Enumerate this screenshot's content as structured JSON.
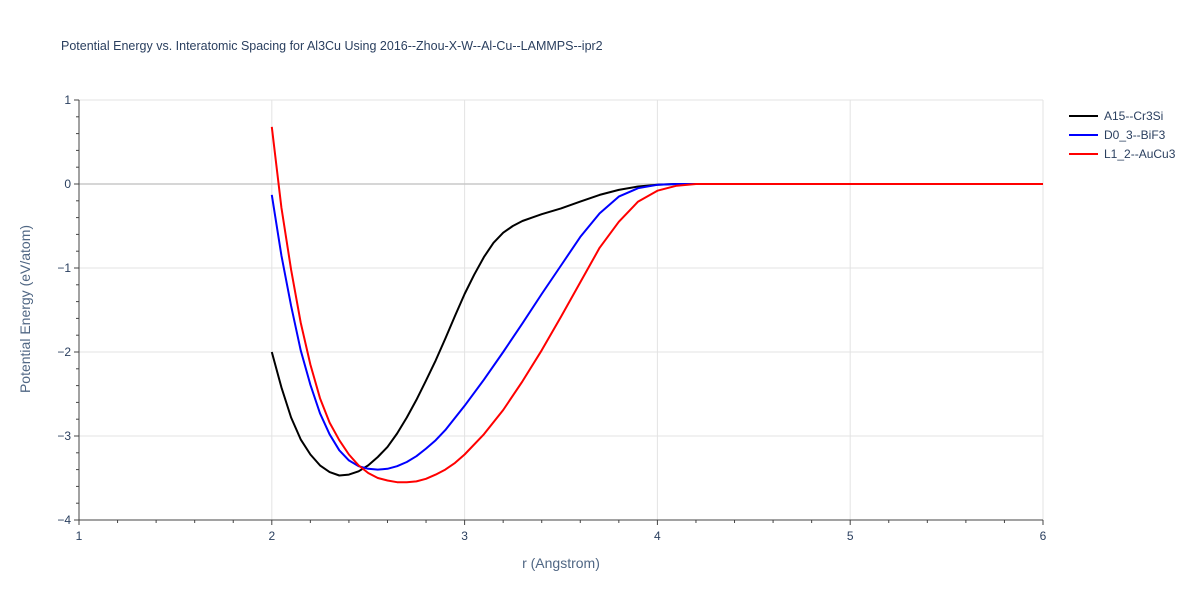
{
  "chart_data": {
    "type": "line",
    "title": "Potential Energy vs. Interatomic Spacing for Al3Cu Using 2016--Zhou-X-W--Al-Cu--LAMMPS--ipr2",
    "xlabel": "r (Angstrom)",
    "ylabel": "Potential Energy (eV/atom)",
    "xlim": [
      1,
      6
    ],
    "ylim": [
      -4,
      1
    ],
    "xticks": [
      1,
      2,
      3,
      4,
      5,
      6
    ],
    "xtick_labels": [
      "1",
      "2",
      "3",
      "4",
      "5",
      "6"
    ],
    "yticks": [
      1,
      0,
      -1,
      -2,
      -3,
      -4
    ],
    "ytick_labels": [
      "1",
      "0",
      "−1",
      "−2",
      "−3",
      "−4"
    ],
    "grid": true,
    "legend_position": "top-right",
    "series": [
      {
        "name": "A15--Cr3Si",
        "color": "#000000",
        "x": [
          2.0,
          2.05,
          2.1,
          2.15,
          2.2,
          2.25,
          2.3,
          2.35,
          2.4,
          2.45,
          2.5,
          2.55,
          2.6,
          2.65,
          2.7,
          2.75,
          2.8,
          2.85,
          2.9,
          2.95,
          3.0,
          3.05,
          3.1,
          3.15,
          3.2,
          3.25,
          3.3,
          3.35,
          3.4,
          3.5,
          3.6,
          3.7,
          3.8,
          3.9,
          4.0,
          4.1,
          4.2,
          4.5,
          5.0,
          5.5,
          6.0
        ],
        "y": [
          -2.0,
          -2.42,
          -2.78,
          -3.04,
          -3.22,
          -3.35,
          -3.43,
          -3.47,
          -3.46,
          -3.42,
          -3.35,
          -3.25,
          -3.13,
          -2.97,
          -2.78,
          -2.57,
          -2.34,
          -2.1,
          -1.84,
          -1.57,
          -1.31,
          -1.08,
          -0.87,
          -0.7,
          -0.58,
          -0.5,
          -0.44,
          -0.4,
          -0.36,
          -0.29,
          -0.21,
          -0.13,
          -0.07,
          -0.03,
          -0.01,
          0.0,
          0.0,
          0.0,
          0.0,
          0.0,
          0.0
        ]
      },
      {
        "name": "D0_3--BiF3",
        "color": "#0000ff",
        "x": [
          2.0,
          2.05,
          2.1,
          2.15,
          2.2,
          2.25,
          2.3,
          2.35,
          2.4,
          2.45,
          2.5,
          2.55,
          2.6,
          2.65,
          2.7,
          2.75,
          2.8,
          2.85,
          2.9,
          3.0,
          3.1,
          3.2,
          3.3,
          3.4,
          3.5,
          3.6,
          3.7,
          3.8,
          3.9,
          4.0,
          4.1,
          4.2,
          4.5,
          5.0,
          5.5,
          6.0
        ],
        "y": [
          -0.13,
          -0.85,
          -1.45,
          -1.98,
          -2.39,
          -2.73,
          -2.98,
          -3.17,
          -3.29,
          -3.36,
          -3.39,
          -3.4,
          -3.39,
          -3.36,
          -3.31,
          -3.24,
          -3.15,
          -3.05,
          -2.93,
          -2.64,
          -2.33,
          -2.0,
          -1.66,
          -1.31,
          -0.97,
          -0.63,
          -0.35,
          -0.15,
          -0.05,
          -0.01,
          0.0,
          0.0,
          0.0,
          0.0,
          0.0,
          0.0
        ]
      },
      {
        "name": "L1_2--AuCu3",
        "color": "#ff0000",
        "x": [
          2.0,
          2.05,
          2.1,
          2.15,
          2.2,
          2.25,
          2.3,
          2.35,
          2.4,
          2.45,
          2.5,
          2.55,
          2.6,
          2.65,
          2.7,
          2.75,
          2.8,
          2.85,
          2.9,
          2.95,
          3.0,
          3.1,
          3.2,
          3.3,
          3.4,
          3.5,
          3.6,
          3.7,
          3.8,
          3.9,
          4.0,
          4.1,
          4.2,
          4.5,
          5.0,
          5.5,
          6.0
        ],
        "y": [
          0.68,
          -0.28,
          -1.02,
          -1.65,
          -2.15,
          -2.55,
          -2.84,
          -3.05,
          -3.22,
          -3.35,
          -3.44,
          -3.5,
          -3.53,
          -3.55,
          -3.55,
          -3.54,
          -3.51,
          -3.46,
          -3.4,
          -3.32,
          -3.22,
          -2.98,
          -2.69,
          -2.35,
          -1.98,
          -1.58,
          -1.17,
          -0.76,
          -0.45,
          -0.21,
          -0.08,
          -0.02,
          0.0,
          0.0,
          0.0,
          0.0,
          0.0
        ]
      }
    ]
  }
}
